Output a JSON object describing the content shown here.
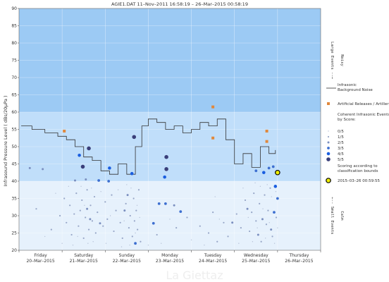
{
  "chart_data": {
    "type": "scatter",
    "title": "AGIE1.DAT   11–Nov–2011 16:58:19   –   26–Mar–2015 00:58:19",
    "ylabel": "Infrasound Pressure Level  ( dBs/20μPa )",
    "ylim": [
      20,
      90
    ],
    "yticks": [
      20,
      25,
      30,
      35,
      40,
      45,
      50,
      55,
      60,
      65,
      70,
      75,
      80,
      85,
      90
    ],
    "xlim": [
      0,
      7
    ],
    "xticks": [
      {
        "x": 0.5,
        "day": "Friday",
        "date": "20–Mar–2015"
      },
      {
        "x": 1.5,
        "day": "Saturday",
        "date": "21–Mar–2015"
      },
      {
        "x": 2.5,
        "day": "Sunday",
        "date": "22–Mar–2015"
      },
      {
        "x": 3.5,
        "day": "Monday",
        "date": "23–Mar–2015"
      },
      {
        "x": 4.5,
        "day": "Tuesday",
        "date": "24–Mar–2015"
      },
      {
        "x": 5.5,
        "day": "Wednesday",
        "date": "25–Mar–2015"
      },
      {
        "x": 6.5,
        "day": "Thursday",
        "date": "26–Mar–2015"
      }
    ],
    "bands": [
      {
        "from": 60,
        "to": 90,
        "color": "#9ccaf4"
      },
      {
        "from": 40,
        "to": 60,
        "color": "#c0defa"
      },
      {
        "from": 20,
        "to": 40,
        "color": "#e6f1fc"
      }
    ],
    "side_labels": [
      {
        "y_from": 90,
        "y_to": 60,
        "lines": [
          "Large Events --→",
          "Noisy"
        ]
      },
      {
        "y_from": 40,
        "y_to": 20,
        "lines": [
          "←-- Small Events",
          "Calm"
        ]
      }
    ],
    "background_noise": {
      "name": "Infrasonic Background Noise",
      "color": "#333333",
      "x": [
        0.05,
        0.3,
        0.6,
        0.9,
        1.1,
        1.3,
        1.5,
        1.7,
        1.9,
        2.1,
        2.3,
        2.5,
        2.7,
        2.85,
        3.0,
        3.2,
        3.4,
        3.6,
        3.8,
        4.0,
        4.2,
        4.4,
        4.6,
        4.8,
        5.0,
        5.2,
        5.4,
        5.6,
        5.8,
        5.95
      ],
      "y": [
        56,
        55,
        54,
        53,
        52,
        50,
        47,
        46,
        43,
        42,
        45,
        42,
        50,
        56,
        58,
        57,
        55,
        56,
        54,
        55,
        57,
        56,
        58,
        52,
        45,
        48,
        44,
        50,
        48,
        49
      ]
    },
    "artificial": {
      "name": "Artificial Releases / Artillery",
      "color": "#e0883c",
      "x": [
        1.05,
        4.5,
        4.5,
        5.75,
        5.75
      ],
      "y": [
        54.5,
        61.5,
        52.5,
        54.5,
        51.5
      ]
    },
    "coherent_legend_title": "Coherent Infrasonic Events, by Score:",
    "scores": [
      {
        "label": "0/5",
        "r": 0.7,
        "color": "#b7c2d8"
      },
      {
        "label": "1/5",
        "r": 1.1,
        "color": "#97a6c7"
      },
      {
        "label": "2/5",
        "r": 1.5,
        "color": "#7b8fbf"
      },
      {
        "label": "3/5",
        "r": 1.9,
        "color": "#3d6fd0"
      },
      {
        "label": "4/5",
        "r": 2.3,
        "color": "#1a5ee0"
      },
      {
        "label": "5/5",
        "r": 2.8,
        "color": "#3a3f7a"
      }
    ],
    "events": [
      {
        "x": 1.62,
        "y": 49.5,
        "s": 5
      },
      {
        "x": 1.48,
        "y": 44.2,
        "s": 5
      },
      {
        "x": 2.67,
        "y": 52.8,
        "s": 5
      },
      {
        "x": 3.42,
        "y": 47.0,
        "s": 5
      },
      {
        "x": 3.42,
        "y": 43.5,
        "s": 5
      },
      {
        "x": 2.1,
        "y": 43.8,
        "s": 4
      },
      {
        "x": 2.62,
        "y": 42.2,
        "s": 4
      },
      {
        "x": 1.4,
        "y": 47.5,
        "s": 4
      },
      {
        "x": 3.38,
        "y": 41.2,
        "s": 4
      },
      {
        "x": 5.68,
        "y": 42.5,
        "s": 4
      },
      {
        "x": 5.95,
        "y": 38.5,
        "s": 4
      },
      {
        "x": 5.5,
        "y": 43.0,
        "s": 3
      },
      {
        "x": 5.8,
        "y": 43.8,
        "s": 3
      },
      {
        "x": 5.9,
        "y": 44.2,
        "s": 3
      },
      {
        "x": 2.7,
        "y": 22.0,
        "s": 3
      },
      {
        "x": 3.25,
        "y": 33.5,
        "s": 3
      },
      {
        "x": 3.4,
        "y": 33.5,
        "s": 3
      },
      {
        "x": 3.75,
        "y": 31.2,
        "s": 3
      },
      {
        "x": 1.85,
        "y": 40.2,
        "s": 3
      },
      {
        "x": 6.0,
        "y": 35.0,
        "s": 3
      },
      {
        "x": 5.92,
        "y": 31.0,
        "s": 3
      },
      {
        "x": 3.12,
        "y": 27.8,
        "s": 3
      },
      {
        "x": 2.08,
        "y": 40.0,
        "s": 3
      },
      {
        "x": 0.55,
        "y": 43.5,
        "s": 2
      },
      {
        "x": 0.25,
        "y": 43.8,
        "s": 2
      },
      {
        "x": 1.3,
        "y": 40.2,
        "s": 2
      },
      {
        "x": 1.55,
        "y": 40.5,
        "s": 2
      },
      {
        "x": 2.52,
        "y": 36.0,
        "s": 2
      },
      {
        "x": 2.45,
        "y": 31.5,
        "s": 2
      },
      {
        "x": 1.88,
        "y": 27.8,
        "s": 2
      },
      {
        "x": 1.65,
        "y": 29.0,
        "s": 2
      },
      {
        "x": 1.58,
        "y": 32.0,
        "s": 2
      },
      {
        "x": 5.55,
        "y": 24.5,
        "s": 2
      },
      {
        "x": 5.65,
        "y": 29.0,
        "s": 2
      },
      {
        "x": 3.6,
        "y": 33.0,
        "s": 2
      },
      {
        "x": 4.95,
        "y": 28.0,
        "s": 2
      },
      {
        "x": 5.3,
        "y": 32.0,
        "s": 2
      },
      {
        "x": 5.85,
        "y": 26.0,
        "s": 2
      },
      {
        "x": 0.4,
        "y": 32.0,
        "s": 1
      },
      {
        "x": 0.75,
        "y": 26.0,
        "s": 1
      },
      {
        "x": 0.95,
        "y": 30.0,
        "s": 1
      },
      {
        "x": 1.05,
        "y": 35.0,
        "s": 1
      },
      {
        "x": 1.1,
        "y": 28.0,
        "s": 1
      },
      {
        "x": 1.18,
        "y": 33.0,
        "s": 1
      },
      {
        "x": 1.22,
        "y": 24.5,
        "s": 1
      },
      {
        "x": 1.28,
        "y": 30.5,
        "s": 1
      },
      {
        "x": 1.33,
        "y": 36.5,
        "s": 1
      },
      {
        "x": 1.38,
        "y": 27.0,
        "s": 1
      },
      {
        "x": 1.42,
        "y": 31.5,
        "s": 1
      },
      {
        "x": 1.46,
        "y": 34.5,
        "s": 1
      },
      {
        "x": 1.5,
        "y": 23.5,
        "s": 1
      },
      {
        "x": 1.54,
        "y": 29.5,
        "s": 1
      },
      {
        "x": 1.58,
        "y": 37.5,
        "s": 1
      },
      {
        "x": 1.62,
        "y": 26.0,
        "s": 1
      },
      {
        "x": 1.66,
        "y": 33.0,
        "s": 1
      },
      {
        "x": 1.7,
        "y": 28.5,
        "s": 1
      },
      {
        "x": 1.75,
        "y": 35.5,
        "s": 1
      },
      {
        "x": 1.78,
        "y": 25.0,
        "s": 1
      },
      {
        "x": 1.82,
        "y": 31.0,
        "s": 1
      },
      {
        "x": 1.95,
        "y": 27.0,
        "s": 1
      },
      {
        "x": 2.0,
        "y": 34.0,
        "s": 1
      },
      {
        "x": 2.05,
        "y": 29.0,
        "s": 1
      },
      {
        "x": 2.15,
        "y": 36.0,
        "s": 1
      },
      {
        "x": 2.2,
        "y": 25.5,
        "s": 1
      },
      {
        "x": 2.25,
        "y": 31.5,
        "s": 1
      },
      {
        "x": 2.35,
        "y": 28.0,
        "s": 1
      },
      {
        "x": 2.4,
        "y": 23.5,
        "s": 1
      },
      {
        "x": 2.48,
        "y": 33.5,
        "s": 1
      },
      {
        "x": 2.55,
        "y": 26.5,
        "s": 1
      },
      {
        "x": 2.58,
        "y": 30.0,
        "s": 1
      },
      {
        "x": 2.63,
        "y": 24.0,
        "s": 1
      },
      {
        "x": 2.66,
        "y": 35.0,
        "s": 1
      },
      {
        "x": 2.68,
        "y": 28.5,
        "s": 1
      },
      {
        "x": 2.72,
        "y": 31.5,
        "s": 1
      },
      {
        "x": 2.75,
        "y": 26.0,
        "s": 1
      },
      {
        "x": 2.78,
        "y": 37.5,
        "s": 1
      },
      {
        "x": 2.82,
        "y": 22.5,
        "s": 1
      },
      {
        "x": 3.2,
        "y": 24.5,
        "s": 1
      },
      {
        "x": 3.65,
        "y": 26.5,
        "s": 1
      },
      {
        "x": 3.9,
        "y": 29.5,
        "s": 1
      },
      {
        "x": 4.2,
        "y": 27.0,
        "s": 1
      },
      {
        "x": 4.4,
        "y": 25.0,
        "s": 1
      },
      {
        "x": 4.5,
        "y": 31.0,
        "s": 1
      },
      {
        "x": 4.6,
        "y": 22.5,
        "s": 1
      },
      {
        "x": 4.75,
        "y": 28.0,
        "s": 1
      },
      {
        "x": 4.85,
        "y": 24.0,
        "s": 1
      },
      {
        "x": 5.05,
        "y": 30.5,
        "s": 1
      },
      {
        "x": 5.15,
        "y": 26.5,
        "s": 1
      },
      {
        "x": 5.25,
        "y": 34.5,
        "s": 1
      },
      {
        "x": 5.35,
        "y": 25.5,
        "s": 1
      },
      {
        "x": 5.4,
        "y": 31.0,
        "s": 1
      },
      {
        "x": 5.45,
        "y": 36.5,
        "s": 1
      },
      {
        "x": 5.5,
        "y": 28.5,
        "s": 1
      },
      {
        "x": 5.58,
        "y": 33.5,
        "s": 1
      },
      {
        "x": 5.62,
        "y": 22.5,
        "s": 1
      },
      {
        "x": 5.7,
        "y": 36.0,
        "s": 1
      },
      {
        "x": 5.74,
        "y": 27.5,
        "s": 1
      },
      {
        "x": 5.78,
        "y": 31.5,
        "s": 1
      },
      {
        "x": 5.83,
        "y": 38.0,
        "s": 1
      },
      {
        "x": 5.88,
        "y": 24.0,
        "s": 1
      },
      {
        "x": 5.97,
        "y": 29.5,
        "s": 1
      },
      {
        "x": 0.6,
        "y": 24.0,
        "s": 0
      },
      {
        "x": 0.85,
        "y": 36.5,
        "s": 0
      },
      {
        "x": 1.0,
        "y": 22.0,
        "s": 0
      },
      {
        "x": 1.15,
        "y": 38.5,
        "s": 0
      },
      {
        "x": 1.25,
        "y": 21.5,
        "s": 0
      },
      {
        "x": 1.36,
        "y": 24.0,
        "s": 0
      },
      {
        "x": 1.44,
        "y": 38.5,
        "s": 0
      },
      {
        "x": 1.52,
        "y": 33.0,
        "s": 0
      },
      {
        "x": 1.6,
        "y": 22.0,
        "s": 0
      },
      {
        "x": 1.68,
        "y": 38.0,
        "s": 0
      },
      {
        "x": 1.72,
        "y": 22.5,
        "s": 0
      },
      {
        "x": 1.9,
        "y": 37.0,
        "s": 0
      },
      {
        "x": 2.02,
        "y": 22.0,
        "s": 0
      },
      {
        "x": 2.12,
        "y": 30.0,
        "s": 0
      },
      {
        "x": 2.3,
        "y": 37.5,
        "s": 0
      },
      {
        "x": 2.38,
        "y": 21.0,
        "s": 0
      },
      {
        "x": 2.44,
        "y": 28.5,
        "s": 0
      },
      {
        "x": 2.5,
        "y": 39.0,
        "s": 0
      },
      {
        "x": 2.57,
        "y": 21.5,
        "s": 0
      },
      {
        "x": 2.6,
        "y": 38.0,
        "s": 0
      },
      {
        "x": 2.7,
        "y": 25.0,
        "s": 0
      },
      {
        "x": 2.74,
        "y": 33.0,
        "s": 0
      },
      {
        "x": 2.8,
        "y": 29.5,
        "s": 0
      },
      {
        "x": 3.0,
        "y": 21.5,
        "s": 0
      },
      {
        "x": 3.3,
        "y": 22.0,
        "s": 0
      },
      {
        "x": 3.5,
        "y": 29.0,
        "s": 0
      },
      {
        "x": 4.0,
        "y": 23.0,
        "s": 0
      },
      {
        "x": 4.3,
        "y": 21.5,
        "s": 0
      },
      {
        "x": 4.55,
        "y": 35.5,
        "s": 0
      },
      {
        "x": 4.65,
        "y": 29.0,
        "s": 0
      },
      {
        "x": 5.1,
        "y": 22.0,
        "s": 0
      },
      {
        "x": 5.2,
        "y": 38.0,
        "s": 0
      },
      {
        "x": 5.32,
        "y": 29.5,
        "s": 0
      },
      {
        "x": 5.42,
        "y": 22.5,
        "s": 0
      },
      {
        "x": 5.48,
        "y": 39.5,
        "s": 0
      },
      {
        "x": 5.53,
        "y": 26.5,
        "s": 0
      },
      {
        "x": 5.6,
        "y": 38.5,
        "s": 0
      },
      {
        "x": 5.66,
        "y": 32.0,
        "s": 0
      },
      {
        "x": 5.72,
        "y": 23.5,
        "s": 0
      },
      {
        "x": 5.76,
        "y": 39.0,
        "s": 0
      },
      {
        "x": 5.81,
        "y": 28.0,
        "s": 0
      },
      {
        "x": 5.86,
        "y": 35.5,
        "s": 0
      },
      {
        "x": 5.93,
        "y": 22.0,
        "s": 0
      },
      {
        "x": 5.96,
        "y": 37.0,
        "s": 0
      },
      {
        "x": 6.0,
        "y": 26.5,
        "s": 0
      }
    ],
    "highlight": {
      "x": 6.0,
      "y": 42.5,
      "color": "#f0f000",
      "label": "2015–03–26 00:59:55"
    },
    "scoring_note": "Scoring according to classification bounds"
  },
  "watermark": "La Giettaz"
}
